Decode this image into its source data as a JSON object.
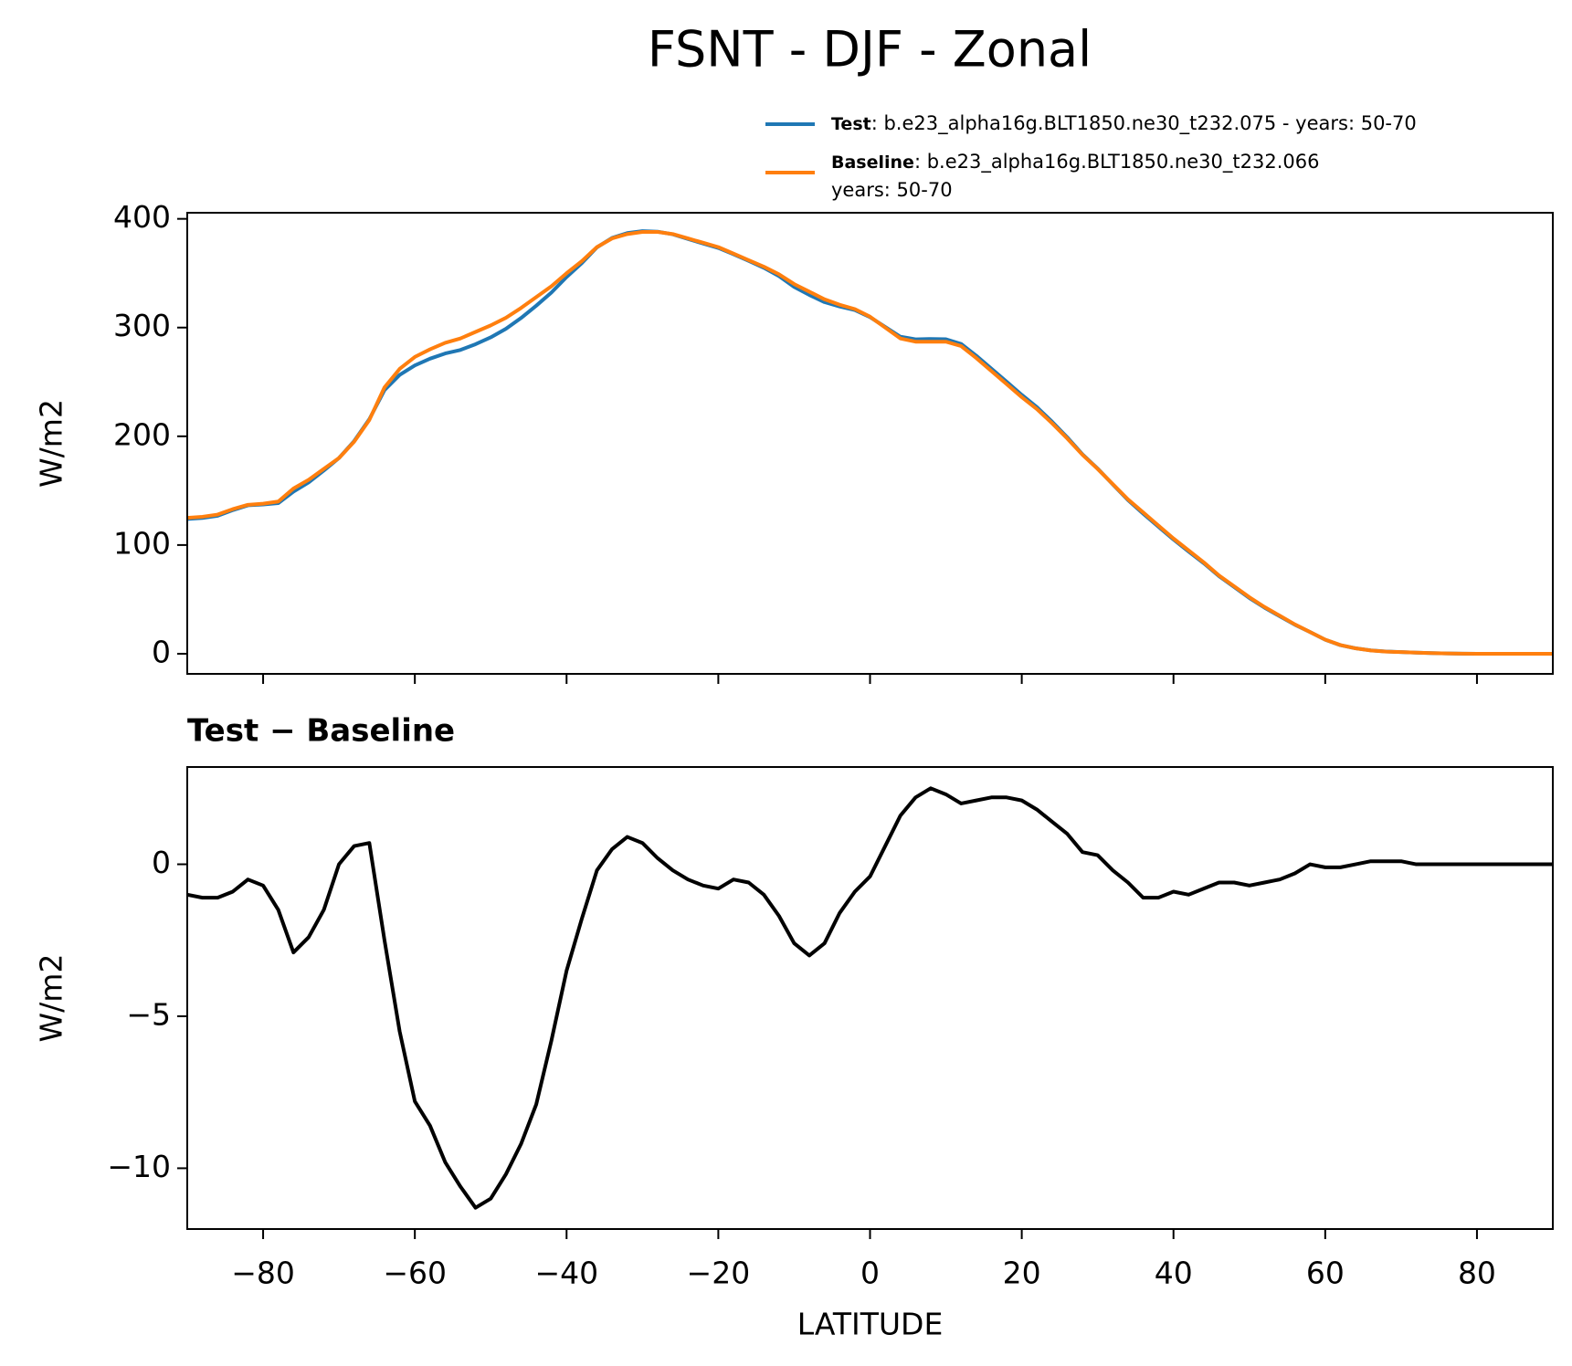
{
  "title": "FSNT - DJF - Zonal",
  "chart_data": [
    {
      "type": "line",
      "ylabel": "W/m2",
      "x": [
        -90,
        -88,
        -86,
        -84,
        -82,
        -80,
        -78,
        -76,
        -74,
        -72,
        -70,
        -68,
        -66,
        -64,
        -62,
        -60,
        -58,
        -56,
        -54,
        -52,
        -50,
        -48,
        -46,
        -44,
        -42,
        -40,
        -38,
        -36,
        -34,
        -32,
        -30,
        -28,
        -26,
        -24,
        -22,
        -20,
        -18,
        -16,
        -14,
        -12,
        -10,
        -8,
        -6,
        -4,
        -2,
        0,
        2,
        4,
        6,
        8,
        10,
        12,
        14,
        16,
        18,
        20,
        22,
        24,
        26,
        28,
        30,
        32,
        34,
        36,
        38,
        40,
        42,
        44,
        46,
        48,
        50,
        52,
        54,
        56,
        58,
        60,
        62,
        64,
        66,
        68,
        70,
        72,
        74,
        76,
        78,
        80,
        82,
        84,
        86,
        88,
        90
      ],
      "series": [
        {
          "name": "Test",
          "label_lines": [
            ": b.e23_alpha16g.BLT1850.ne30_t232.075 - years: 50-70"
          ],
          "color": "#1f77b4",
          "values": [
            124.0,
            124.9,
            126.9,
            132.1,
            136.5,
            137.3,
            138.5,
            149.1,
            157.6,
            168.5,
            180.0,
            195.6,
            215.7,
            242.5,
            256.5,
            265.2,
            271.4,
            276.2,
            279.4,
            284.7,
            291.0,
            298.8,
            308.8,
            320.1,
            332.2,
            346.5,
            359.2,
            373.8,
            382.5,
            386.9,
            388.7,
            388.2,
            385.8,
            381.5,
            377.3,
            373.2,
            367.5,
            361.4,
            355.0,
            347.3,
            337.4,
            330.0,
            323.4,
            319.4,
            316.1,
            309.6,
            300.6,
            291.6,
            289.2,
            289.5,
            289.3,
            285.0,
            274.1,
            262.2,
            250.2,
            238.1,
            226.8,
            213.4,
            199.0,
            183.4,
            170.3,
            155.8,
            141.4,
            128.9,
            116.9,
            105.1,
            94.0,
            83.2,
            71.4,
            61.4,
            51.3,
            42.4,
            34.5,
            26.7,
            20.0,
            12.9,
            7.9,
            5,
            3.1,
            2.1,
            1.6,
            1,
            0.6,
            0.3,
            0.1,
            0,
            0,
            0,
            0,
            0,
            0
          ]
        },
        {
          "name": "Baseline",
          "label_lines": [
            ": b.e23_alpha16g.BLT1850.ne30_t232.066",
            "years: 50-70"
          ],
          "color": "#ff7f0e",
          "values": [
            125,
            126,
            128,
            133,
            137,
            138,
            140,
            152,
            160,
            170,
            180,
            195,
            215,
            245,
            262,
            273,
            280,
            286,
            290,
            296,
            302,
            309,
            318,
            328,
            338,
            350,
            361,
            374,
            382,
            386,
            388,
            388,
            386,
            382,
            378,
            374,
            368,
            362,
            356,
            349,
            340,
            333,
            326,
            321,
            317,
            310,
            300,
            290,
            287,
            287,
            287,
            283,
            272,
            260,
            248,
            236,
            225,
            212,
            198,
            183,
            170,
            156,
            142,
            130,
            118,
            106,
            95,
            84,
            72,
            62,
            52,
            43,
            35,
            27,
            20,
            13,
            8,
            5,
            3,
            2,
            1.5,
            1,
            0.6,
            0.3,
            0.1,
            0,
            0,
            0,
            0,
            0,
            0
          ]
        }
      ],
      "xlim": [
        -90,
        90
      ],
      "xticks": [
        -80,
        -60,
        -40,
        -20,
        0,
        20,
        40,
        60,
        80
      ],
      "ylim": [
        -18.5,
        405.6
      ],
      "yticks": [
        0,
        100,
        200,
        300,
        400
      ]
    },
    {
      "type": "line",
      "title": "Test − Baseline",
      "ylabel": "W/m2",
      "xlabel": "LATITUDE",
      "x": [
        -90,
        -88,
        -86,
        -84,
        -82,
        -80,
        -78,
        -76,
        -74,
        -72,
        -70,
        -68,
        -66,
        -64,
        -62,
        -60,
        -58,
        -56,
        -54,
        -52,
        -50,
        -48,
        -46,
        -44,
        -42,
        -40,
        -38,
        -36,
        -34,
        -32,
        -30,
        -28,
        -26,
        -24,
        -22,
        -20,
        -18,
        -16,
        -14,
        -12,
        -10,
        -8,
        -6,
        -4,
        -2,
        0,
        2,
        4,
        6,
        8,
        10,
        12,
        14,
        16,
        18,
        20,
        22,
        24,
        26,
        28,
        30,
        32,
        34,
        36,
        38,
        40,
        42,
        44,
        46,
        48,
        50,
        52,
        54,
        56,
        58,
        60,
        62,
        64,
        66,
        68,
        70,
        72,
        74,
        76,
        78,
        80,
        82,
        84,
        86,
        88,
        90
      ],
      "series": [
        {
          "color": "#000000",
          "values": [
            -1.0,
            -1.1,
            -1.1,
            -0.9,
            -0.5,
            -0.7,
            -1.5,
            -2.9,
            -2.4,
            -1.5,
            0.0,
            0.6,
            0.7,
            -2.5,
            -5.5,
            -7.8,
            -8.6,
            -9.8,
            -10.6,
            -11.3,
            -11.0,
            -10.2,
            -9.2,
            -7.9,
            -5.8,
            -3.5,
            -1.8,
            -0.2,
            0.5,
            0.9,
            0.7,
            0.2,
            -0.2,
            -0.5,
            -0.7,
            -0.8,
            -0.5,
            -0.6,
            -1.0,
            -1.7,
            -2.6,
            -3.0,
            -2.6,
            -1.6,
            -0.9,
            -0.4,
            0.6,
            1.6,
            2.2,
            2.5,
            2.3,
            2.0,
            2.1,
            2.2,
            2.2,
            2.1,
            1.8,
            1.4,
            1.0,
            0.4,
            0.3,
            -0.2,
            -0.6,
            -1.1,
            -1.1,
            -0.9,
            -1.0,
            -0.8,
            -0.6,
            -0.6,
            -0.7,
            -0.6,
            -0.5,
            -0.3,
            0.0,
            -0.1,
            -0.1,
            0,
            0.1,
            0.1,
            0.1,
            0,
            0,
            0,
            0,
            0,
            0,
            0,
            0,
            0,
            0
          ]
        }
      ],
      "xlim": [
        -90,
        90
      ],
      "xticks": [
        {
          "value": -80,
          "label": "−80"
        },
        {
          "value": -60,
          "label": "−60"
        },
        {
          "value": -40,
          "label": "−40"
        },
        {
          "value": -20,
          "label": "−20"
        },
        0,
        20,
        40,
        60,
        80
      ],
      "ylim": [
        -12.0,
        3.2
      ],
      "yticks": [
        {
          "value": -10,
          "label": "−10"
        },
        {
          "value": -5,
          "label": "−5"
        },
        0
      ]
    }
  ]
}
